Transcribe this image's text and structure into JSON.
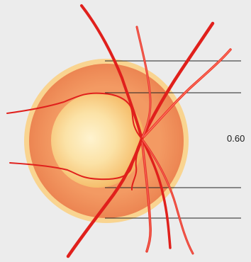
{
  "figure": {
    "cup_to_disc_ratio_label": "0.60"
  },
  "colors": {
    "background": "#ececec",
    "disc_rim": "#f9d490",
    "disc_tissue": "#f0905a",
    "cup_pale": "#fbe7b4",
    "cup_edge": "#f4b35e",
    "vessel": "#e02020",
    "vessel_highlight": "#ff7a6a",
    "measurement_line": "#222222"
  }
}
